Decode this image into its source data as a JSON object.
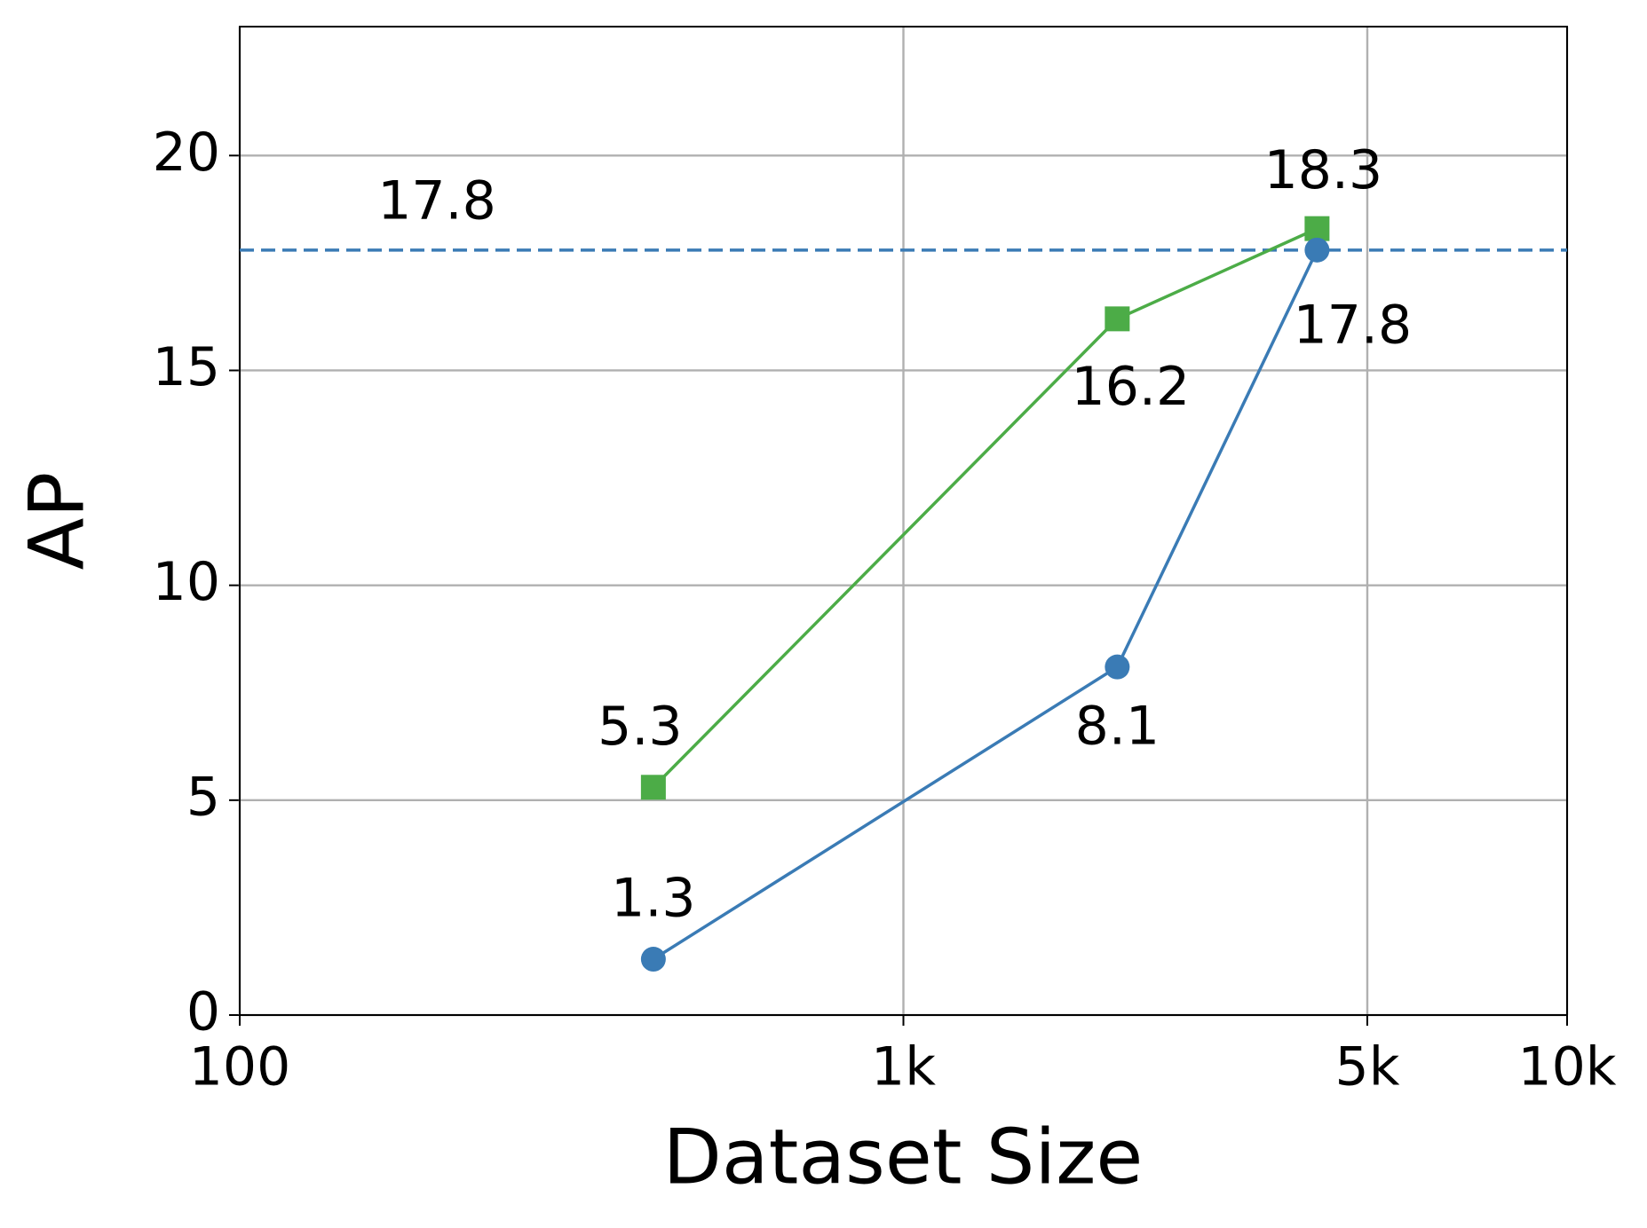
{
  "chart_data": {
    "type": "line",
    "xlabel": "Dataset Size",
    "ylabel": "AP",
    "x": [
      420,
      2100,
      4200
    ],
    "series": [
      {
        "color": "#4cac47",
        "marker": "square",
        "values": [
          5.3,
          16.2,
          18.3
        ]
      },
      {
        "color": "#3a7bb5",
        "marker": "circle",
        "values": [
          1.3,
          8.1,
          17.8
        ]
      }
    ],
    "reference_line": {
      "y": 17.8,
      "color": "#3a7bb5",
      "style": "dashed"
    },
    "xscale": "log",
    "xlim": [
      100,
      10000
    ],
    "xticks": [
      100,
      {
        "value": 1000,
        "label": "1k"
      },
      {
        "value": 5000,
        "label": "5k"
      },
      {
        "value": 10000,
        "label": "10k"
      }
    ],
    "ylim": [
      0,
      23
    ],
    "yticks": [
      0,
      5,
      10,
      15,
      20
    ],
    "grid": true
  }
}
